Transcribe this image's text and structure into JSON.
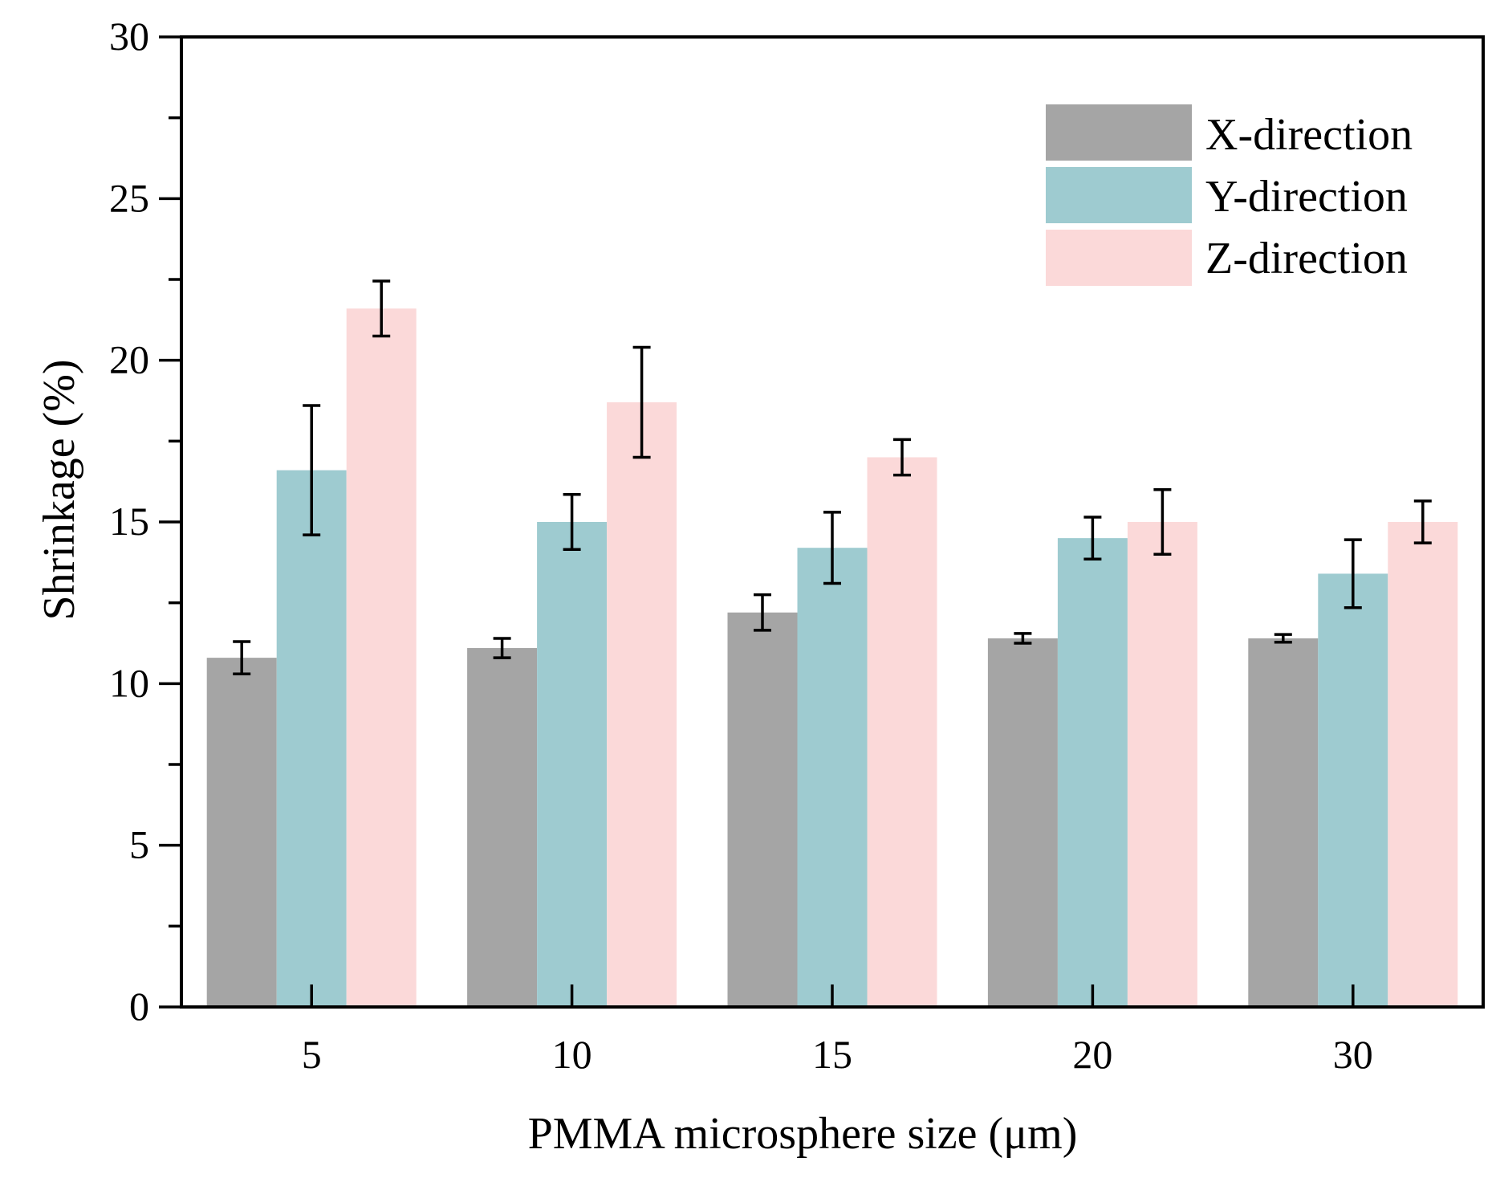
{
  "chart_data": {
    "type": "bar",
    "title": "",
    "xlabel": "PMMA microsphere size (μm)",
    "ylabel": "Shrinkage (%)",
    "ylim": [
      0,
      30
    ],
    "yticks": [
      "0",
      "5",
      "10",
      "15",
      "20",
      "25",
      "30"
    ],
    "categories": [
      "5",
      "10",
      "15",
      "20",
      "30"
    ],
    "series": [
      {
        "name": "X-direction",
        "color": "#a5a5a5",
        "values": [
          10.8,
          11.1,
          12.2,
          11.4,
          11.4
        ],
        "errors": [
          0.5,
          0.3,
          0.55,
          0.15,
          0.12
        ]
      },
      {
        "name": "Y-direction",
        "color": "#9ecbd0",
        "values": [
          16.6,
          15.0,
          14.2,
          14.5,
          13.4
        ],
        "errors": [
          2.0,
          0.85,
          1.1,
          0.65,
          1.05
        ]
      },
      {
        "name": "Z-direction",
        "color": "#fbd9d9",
        "values": [
          21.6,
          18.7,
          17.0,
          15.0,
          15.0
        ],
        "errors": [
          0.85,
          1.7,
          0.55,
          1.0,
          0.65
        ]
      }
    ],
    "legend_position": "top-right",
    "grid": false
  }
}
